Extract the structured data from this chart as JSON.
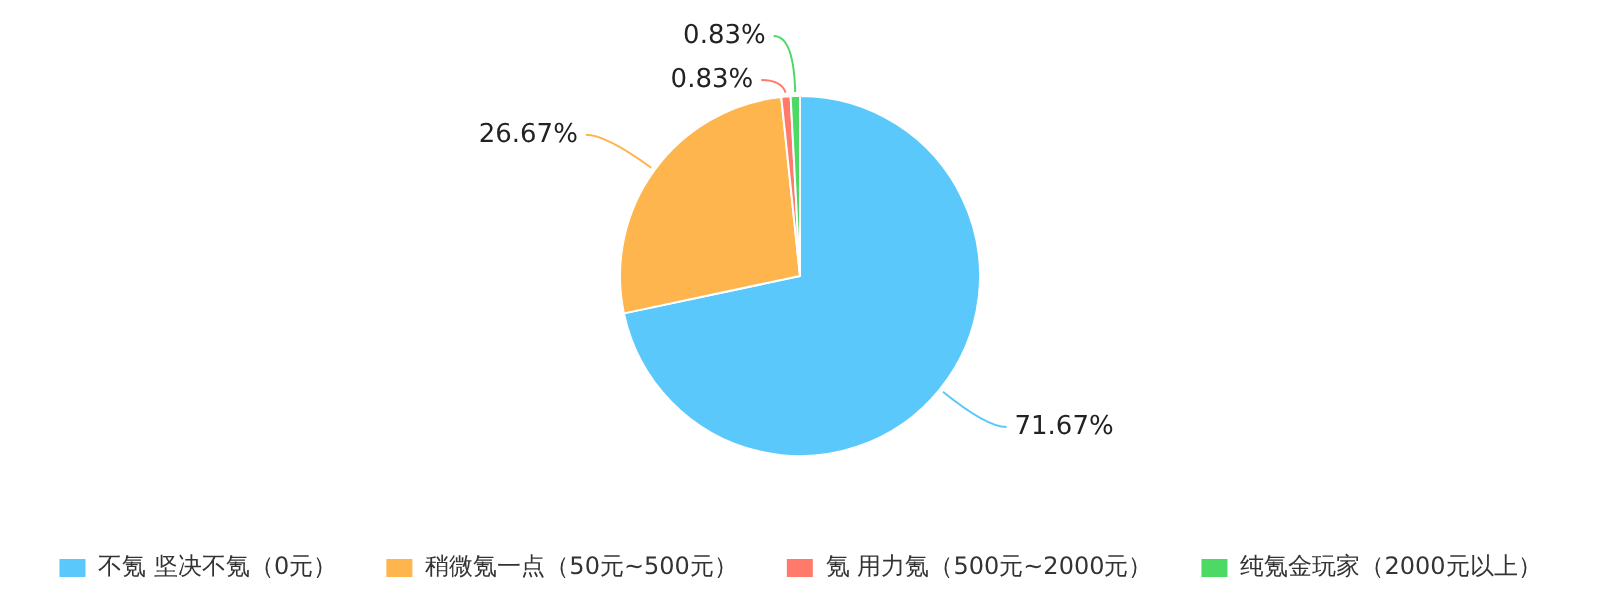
{
  "chart_data": {
    "type": "pie",
    "categories": [
      "不氪 坚决不氪（0元）",
      "稍微氪一点（50元~500元）",
      "氪 用力氪（500元~2000元）",
      "纯氪金玩家（2000元以上）"
    ],
    "values": [
      71.67,
      26.67,
      0.83,
      0.83
    ],
    "value_labels": [
      "71.67%",
      "26.67%",
      "0.83%",
      "0.83%"
    ],
    "colors": [
      "#5ac8fa",
      "#ffb54d",
      "#ff7a6b",
      "#4cd964"
    ],
    "legend": "bottom"
  }
}
